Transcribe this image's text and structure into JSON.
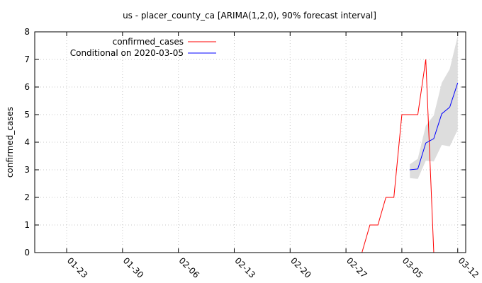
{
  "chart_data": {
    "type": "line",
    "title": "us - placer_county_ca [ARIMA(1,2,0), 90% forecast interval]",
    "xlabel": "",
    "ylabel": "confirmed_cases",
    "ylim": [
      0,
      8
    ],
    "xlim": [
      "2020-01-19",
      "2020-03-13"
    ],
    "x_ticks": [
      "01-23",
      "01-30",
      "02-06",
      "02-13",
      "02-20",
      "02-27",
      "03-05",
      "03-12"
    ],
    "y_ticks": [
      0,
      1,
      2,
      3,
      4,
      5,
      6,
      7,
      8
    ],
    "grid": true,
    "legend_position": "top-left",
    "series": [
      {
        "name": "confirmed_cases",
        "color": "#ff0000",
        "points": [
          {
            "x": "2020-02-29",
            "y": 0
          },
          {
            "x": "2020-03-01",
            "y": 1
          },
          {
            "x": "2020-03-02",
            "y": 1
          },
          {
            "x": "2020-03-03",
            "y": 2
          },
          {
            "x": "2020-03-04",
            "y": 2
          },
          {
            "x": "2020-03-05",
            "y": 5
          },
          {
            "x": "2020-03-06",
            "y": 5
          },
          {
            "x": "2020-03-07",
            "y": 5
          },
          {
            "x": "2020-03-08",
            "y": 7
          },
          {
            "x": "2020-03-09",
            "y": 0
          }
        ]
      },
      {
        "name": "Conditional on 2020-03-05",
        "color": "#0000ff",
        "points": [
          {
            "x": "2020-03-06",
            "y": 3.0
          },
          {
            "x": "2020-03-07",
            "y": 3.03
          },
          {
            "x": "2020-03-08",
            "y": 3.97
          },
          {
            "x": "2020-03-09",
            "y": 4.13
          },
          {
            "x": "2020-03-10",
            "y": 5.03
          },
          {
            "x": "2020-03-11",
            "y": 5.27
          },
          {
            "x": "2020-03-12",
            "y": 6.15
          }
        ]
      }
    ],
    "forecast_interval": {
      "level": "90%",
      "color": "#dddddd",
      "points": [
        {
          "x": "2020-03-06",
          "low": 2.7,
          "high": 3.2
        },
        {
          "x": "2020-03-07",
          "low": 2.67,
          "high": 3.4
        },
        {
          "x": "2020-03-08",
          "low": 3.33,
          "high": 4.6
        },
        {
          "x": "2020-03-09",
          "low": 3.3,
          "high": 4.97
        },
        {
          "x": "2020-03-10",
          "low": 3.9,
          "high": 6.15
        },
        {
          "x": "2020-03-11",
          "low": 3.85,
          "high": 6.65
        },
        {
          "x": "2020-03-12",
          "low": 4.45,
          "high": 7.85
        }
      ]
    }
  }
}
